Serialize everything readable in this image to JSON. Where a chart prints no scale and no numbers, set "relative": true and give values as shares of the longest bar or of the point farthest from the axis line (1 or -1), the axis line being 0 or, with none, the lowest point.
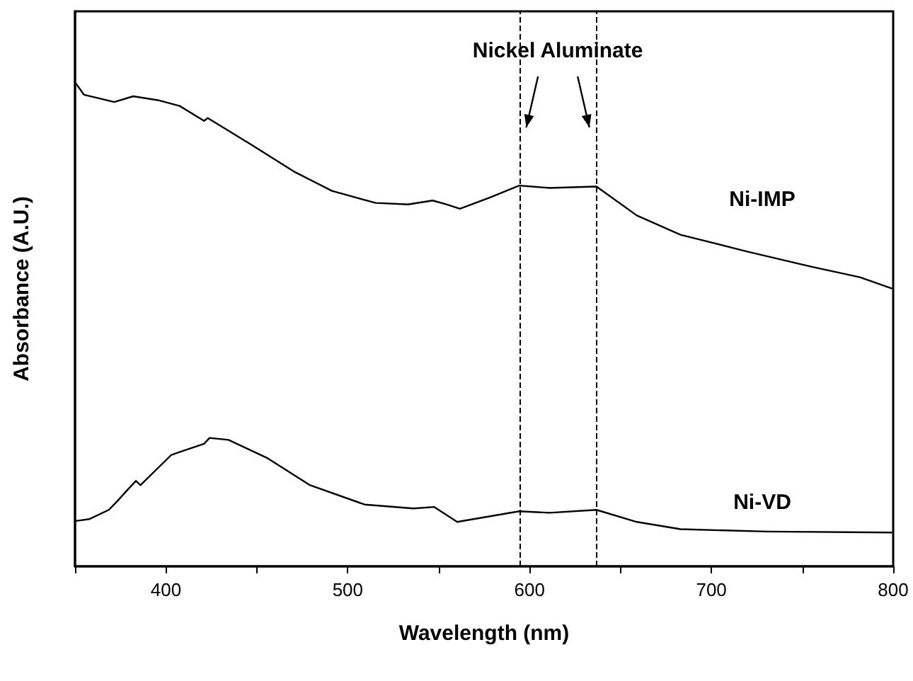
{
  "chart_data": {
    "type": "line",
    "relative": true,
    "xlabel": "Wavelength (nm)",
    "ylabel": "Absorbance (A.U.)",
    "xlim": [
      350,
      800
    ],
    "xticks": [
      {
        "value": 350,
        "label": null
      },
      400,
      {
        "value": 450,
        "label": null
      },
      500,
      {
        "value": 550,
        "label": null
      },
      600,
      {
        "value": 650,
        "label": null
      },
      700,
      {
        "value": 750,
        "label": null
      },
      800
    ],
    "annotations": [
      "Nickel Aluminate"
    ],
    "ref_lines": [
      {
        "axis": "x",
        "value": 594.3,
        "line_style": "dashed",
        "color": "#000000"
      },
      {
        "axis": "x",
        "value": 636.8,
        "line_style": "dashed",
        "color": "#000000"
      }
    ],
    "legend": false,
    "grid": false,
    "marker": "none",
    "line_style": "solid",
    "series": [
      {
        "name": "Ni-IMP",
        "color": "#000000",
        "x": [
          350.6,
          355,
          371.6,
          382,
          395.5,
          407.5,
          421,
          423,
          446.4,
          470.4,
          491.3,
          515.3,
          533.2,
          546.7,
          554.2,
          561.7,
          578.1,
          594.3,
          611,
          636.8,
          659,
          683,
          718.9,
          754.8,
          781.7,
          799.1
        ],
        "values": [
          1.0,
          0.977,
          0.962,
          0.974,
          0.966,
          0.954,
          0.923,
          0.929,
          0.875,
          0.818,
          0.778,
          0.753,
          0.75,
          0.758,
          0.75,
          0.741,
          0.764,
          0.789,
          0.784,
          0.787,
          0.727,
          0.687,
          0.653,
          0.621,
          0.599,
          0.576
        ]
      },
      {
        "name": "Ni-VD",
        "color": "#000000",
        "x": [
          350.6,
          358,
          368.6,
          373,
          379,
          383.5,
          386,
          403,
          421,
          424,
          434.4,
          455.4,
          479.3,
          509.3,
          536.2,
          547.6,
          560.2,
          594.3,
          611,
          636.8,
          659,
          683,
          730.8,
          799.1
        ],
        "values": [
          0.094,
          0.098,
          0.117,
          0.134,
          0.159,
          0.177,
          0.168,
          0.231,
          0.254,
          0.266,
          0.262,
          0.225,
          0.168,
          0.128,
          0.12,
          0.123,
          0.092,
          0.114,
          0.111,
          0.117,
          0.092,
          0.077,
          0.072,
          0.07
        ]
      }
    ]
  }
}
